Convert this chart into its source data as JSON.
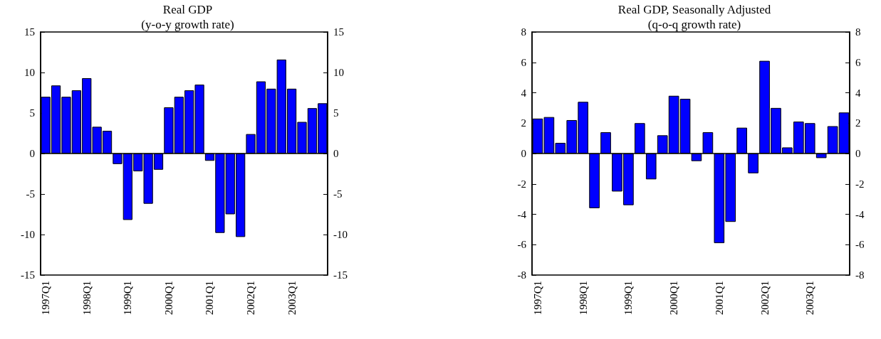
{
  "chart_data": [
    {
      "type": "bar",
      "title": "Real GDP",
      "subtitle": "(y-o-y growth rate)",
      "categories": [
        "1997Q1",
        null,
        null,
        null,
        "1998Q1",
        null,
        null,
        null,
        "1999Q1",
        null,
        null,
        null,
        "2000Q1",
        null,
        null,
        null,
        "2001Q1",
        null,
        null,
        null,
        "2002Q1",
        null,
        null,
        null,
        "2003Q1",
        null,
        null,
        null
      ],
      "values": [
        7.0,
        8.4,
        7.0,
        7.8,
        9.3,
        3.3,
        2.8,
        -1.3,
        -8.2,
        -2.2,
        -6.2,
        -2.0,
        5.7,
        7.0,
        7.8,
        8.5,
        -0.9,
        -9.8,
        -7.5,
        -10.3,
        2.4,
        8.9,
        8.0,
        11.6,
        8.0,
        3.9,
        5.6,
        6.2
      ],
      "color": "#0000ff",
      "ylim": [
        -15,
        15
      ],
      "yticks": [
        -15,
        -10,
        -5,
        0,
        5,
        10,
        15
      ],
      "y2lim": [
        -15,
        15
      ],
      "y2ticks": [
        -15,
        -10,
        -5,
        0,
        5,
        10,
        15
      ]
    },
    {
      "type": "bar",
      "title": "Real GDP, Seasonally Adjusted",
      "subtitle": "(q-o-q growth rate)",
      "categories": [
        "1997Q1",
        null,
        null,
        null,
        "1998Q1",
        null,
        null,
        null,
        "1999Q1",
        null,
        null,
        null,
        "2000Q1",
        null,
        null,
        null,
        "2001Q1",
        null,
        null,
        null,
        "2002Q1",
        null,
        null,
        null,
        "2003Q1",
        null,
        null,
        null
      ],
      "values": [
        2.3,
        2.4,
        0.7,
        2.2,
        3.4,
        -3.6,
        1.4,
        -2.5,
        -3.4,
        2.0,
        -1.7,
        1.2,
        3.8,
        3.6,
        -0.5,
        1.4,
        -5.9,
        -4.5,
        1.7,
        -1.3,
        6.1,
        3.0,
        0.4,
        2.1,
        2.0,
        -0.3,
        1.8,
        2.7
      ],
      "color": "#0000ff",
      "ylim": [
        -8,
        8
      ],
      "yticks": [
        -8,
        -6,
        -4,
        -2,
        0,
        2,
        4,
        6,
        8
      ],
      "y2lim": [
        -8,
        8
      ],
      "y2ticks": [
        -8,
        -6,
        -4,
        -2,
        0,
        2,
        4,
        6,
        8
      ]
    }
  ]
}
